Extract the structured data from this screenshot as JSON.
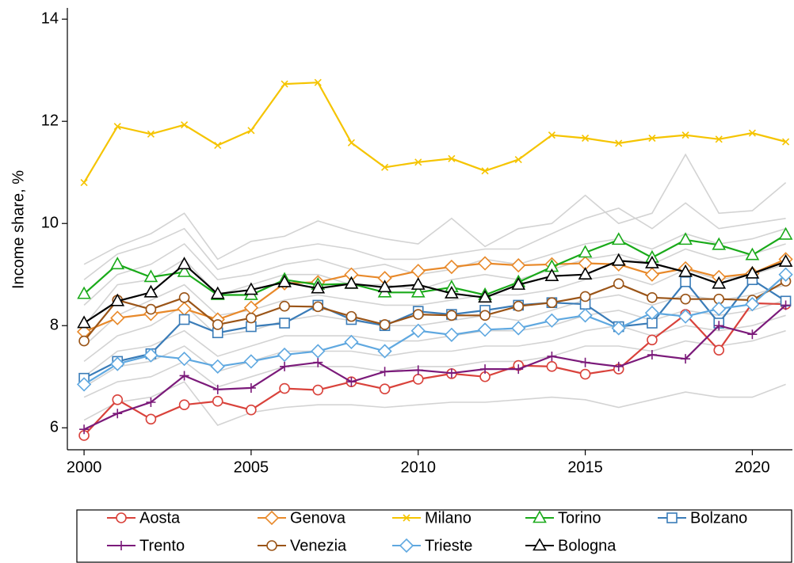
{
  "chart_data": {
    "type": "line",
    "y_label": "Income share, %",
    "x": [
      2000,
      2001,
      2002,
      2003,
      2004,
      2005,
      2006,
      2007,
      2008,
      2009,
      2010,
      2011,
      2012,
      2013,
      2014,
      2015,
      2016,
      2017,
      2018,
      2019,
      2020,
      2021
    ],
    "xlim": [
      1999.5,
      2021.2
    ],
    "xticks": [
      2000,
      2005,
      2010,
      2015,
      2020
    ],
    "ylim": [
      5.57,
      14.22
    ],
    "yticks": [
      6,
      8,
      10,
      12,
      14
    ],
    "background_color": "#d3d3d3",
    "background_series": [
      {
        "values": [
          9.2,
          9.55,
          9.8,
          10.2,
          9.3,
          9.65,
          9.75,
          10.05,
          9.85,
          9.7,
          9.6,
          10.1,
          9.55,
          9.9,
          10.0,
          10.55,
          10.0,
          10.2,
          11.35,
          10.2,
          10.25,
          10.8
        ]
      },
      {
        "values": [
          8.9,
          9.4,
          9.6,
          9.9,
          9.1,
          9.3,
          9.5,
          9.6,
          9.5,
          9.3,
          9.3,
          9.4,
          9.5,
          9.5,
          9.8,
          10.1,
          10.3,
          9.9,
          10.4,
          9.9,
          10.0,
          10.1
        ]
      },
      {
        "values": [
          8.4,
          9.0,
          9.2,
          9.6,
          8.9,
          9.0,
          9.2,
          9.3,
          9.1,
          9.2,
          9.0,
          9.1,
          9.3,
          9.2,
          9.4,
          9.6,
          9.7,
          9.5,
          9.8,
          9.6,
          9.7,
          9.9
        ]
      },
      {
        "values": [
          8.0,
          8.8,
          8.9,
          9.3,
          8.6,
          8.8,
          9.0,
          9.0,
          8.8,
          8.8,
          8.7,
          8.9,
          9.0,
          8.9,
          9.1,
          9.3,
          9.4,
          9.2,
          9.5,
          9.3,
          9.4,
          9.6
        ]
      },
      {
        "values": [
          7.6,
          8.2,
          8.5,
          8.8,
          8.2,
          8.3,
          8.5,
          8.6,
          8.5,
          8.4,
          8.4,
          8.5,
          8.6,
          8.6,
          8.7,
          8.9,
          9.0,
          8.8,
          9.1,
          8.9,
          9.0,
          9.2
        ]
      },
      {
        "values": [
          7.3,
          7.8,
          8.0,
          8.4,
          7.8,
          7.9,
          8.1,
          8.2,
          8.1,
          8.0,
          8.0,
          8.1,
          8.2,
          8.1,
          8.3,
          8.5,
          8.6,
          8.4,
          8.6,
          8.5,
          8.6,
          8.8
        ]
      },
      {
        "values": [
          7.0,
          7.5,
          7.6,
          7.9,
          7.4,
          7.6,
          7.8,
          7.8,
          7.8,
          7.7,
          7.7,
          7.8,
          7.9,
          7.9,
          8.0,
          8.2,
          8.3,
          8.1,
          8.3,
          8.2,
          8.3,
          8.5
        ]
      },
      {
        "values": [
          6.8,
          7.2,
          7.3,
          7.6,
          7.1,
          7.3,
          7.5,
          7.5,
          7.5,
          7.4,
          7.5,
          7.5,
          7.6,
          7.6,
          7.7,
          7.9,
          8.0,
          7.8,
          8.0,
          7.9,
          8.0,
          8.2
        ]
      },
      {
        "values": [
          6.6,
          6.9,
          7.0,
          7.3,
          6.8,
          7.0,
          7.2,
          7.2,
          7.2,
          7.1,
          7.2,
          7.2,
          7.3,
          7.3,
          7.4,
          7.6,
          7.6,
          7.5,
          7.7,
          7.6,
          7.7,
          7.9
        ]
      },
      {
        "values": [
          6.15,
          6.5,
          6.6,
          6.9,
          6.05,
          6.3,
          6.4,
          6.45,
          6.45,
          6.4,
          6.45,
          6.5,
          6.5,
          6.55,
          6.6,
          6.55,
          6.4,
          6.55,
          6.7,
          6.6,
          6.6,
          6.85
        ]
      }
    ],
    "series": [
      {
        "name": "Aosta",
        "color": "#d9423b",
        "marker": "circle",
        "values": [
          5.85,
          6.55,
          6.17,
          6.45,
          6.52,
          6.35,
          6.77,
          6.74,
          6.9,
          6.76,
          6.95,
          7.06,
          7.0,
          7.22,
          7.2,
          7.05,
          7.15,
          7.72,
          8.22,
          7.52,
          8.44,
          8.42
        ]
      },
      {
        "name": "Genova",
        "color": "#e8892a",
        "marker": "diamond",
        "values": [
          7.88,
          8.15,
          8.23,
          8.33,
          8.12,
          8.35,
          8.83,
          8.85,
          9.0,
          8.93,
          9.07,
          9.15,
          9.22,
          9.18,
          9.2,
          9.22,
          9.2,
          9.0,
          9.12,
          8.95,
          9.02,
          9.3
        ]
      },
      {
        "name": "Milano",
        "color": "#f5c400",
        "marker": "x",
        "values": [
          10.8,
          11.9,
          11.75,
          11.93,
          11.53,
          11.82,
          12.73,
          12.76,
          11.58,
          11.1,
          11.2,
          11.27,
          11.03,
          11.25,
          11.73,
          11.67,
          11.57,
          11.67,
          11.73,
          11.65,
          11.77,
          11.6
        ]
      },
      {
        "name": "Torino",
        "color": "#1aaa1a",
        "marker": "triangle",
        "values": [
          8.62,
          9.2,
          8.95,
          9.05,
          8.6,
          8.6,
          8.9,
          8.8,
          8.82,
          8.65,
          8.65,
          8.75,
          8.6,
          8.85,
          9.15,
          9.43,
          9.68,
          9.33,
          9.68,
          9.58,
          9.38,
          9.78
        ]
      },
      {
        "name": "Bolzano",
        "color": "#3a7cb8",
        "marker": "square",
        "values": [
          6.97,
          7.3,
          7.45,
          8.12,
          7.86,
          7.98,
          8.05,
          8.4,
          8.12,
          8.0,
          8.28,
          8.22,
          8.3,
          8.4,
          8.45,
          8.42,
          7.98,
          8.05,
          8.86,
          8.05,
          8.9,
          8.48
        ]
      },
      {
        "name": "Trento",
        "color": "#7b1a7a",
        "marker": "plus",
        "values": [
          5.97,
          6.28,
          6.5,
          7.02,
          6.75,
          6.78,
          7.2,
          7.28,
          6.9,
          7.1,
          7.13,
          7.07,
          7.15,
          7.15,
          7.4,
          7.28,
          7.2,
          7.43,
          7.35,
          8.0,
          7.83,
          8.4
        ]
      },
      {
        "name": "Venezia",
        "color": "#9a5417",
        "marker": "circle",
        "values": [
          7.7,
          8.5,
          8.32,
          8.55,
          8.02,
          8.15,
          8.38,
          8.37,
          8.18,
          8.02,
          8.22,
          8.2,
          8.2,
          8.38,
          8.45,
          8.57,
          8.82,
          8.55,
          8.52,
          8.52,
          8.5,
          8.87
        ]
      },
      {
        "name": "Trieste",
        "color": "#5fa8e0",
        "marker": "diamond",
        "values": [
          6.85,
          7.25,
          7.42,
          7.35,
          7.2,
          7.3,
          7.43,
          7.5,
          7.68,
          7.5,
          7.9,
          7.82,
          7.92,
          7.95,
          8.1,
          8.2,
          7.95,
          8.25,
          8.18,
          8.33,
          8.42,
          9.0
        ]
      },
      {
        "name": "Bologna",
        "color": "#000000",
        "marker": "triangle",
        "values": [
          8.05,
          8.48,
          8.65,
          9.2,
          8.62,
          8.7,
          8.85,
          8.73,
          8.82,
          8.75,
          8.8,
          8.63,
          8.55,
          8.8,
          8.97,
          9.0,
          9.27,
          9.22,
          9.05,
          8.82,
          9.02,
          9.25
        ]
      }
    ]
  }
}
